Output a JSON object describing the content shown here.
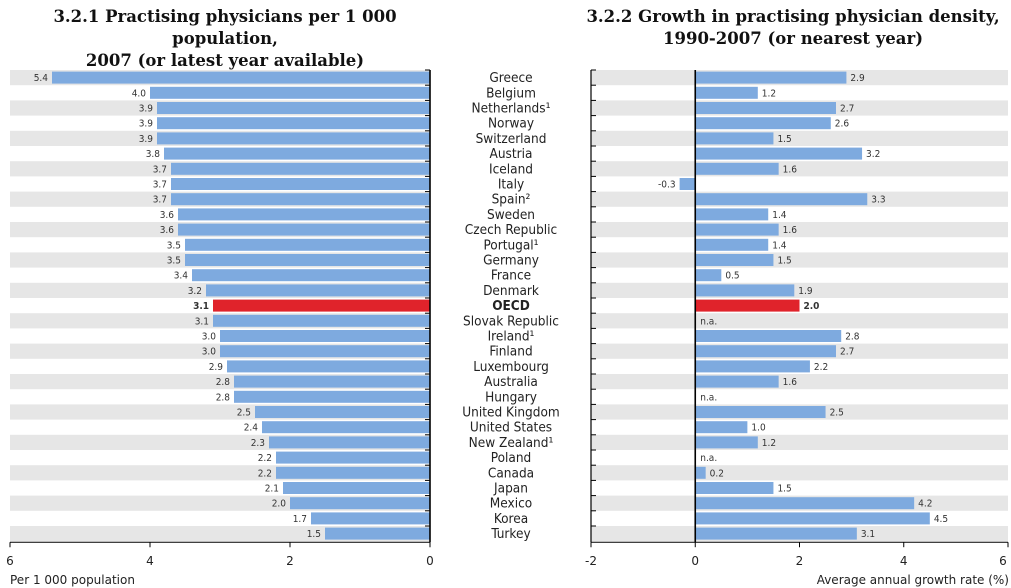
{
  "left_title": [
    "3.2.1  Practising physicians per 1 000 population,",
    "2007 (or latest year available)"
  ],
  "right_title": [
    "3.2.2  Growth in practising physician density,",
    "1990-2007 (or nearest year)"
  ],
  "colors": {
    "bar": "#7eaadf",
    "highlight": "#e0232b",
    "axis": "#000000",
    "band": "#e6e6e6"
  },
  "chart_data": [
    {
      "type": "bar",
      "orientation": "horizontal",
      "title": "3.2.1 Practising physicians per 1 000 population, 2007 (or latest year available)",
      "xlabel": "Per 1 000 population",
      "xlim": [
        6,
        0
      ],
      "ticks": [
        "6",
        "4",
        "2",
        "0"
      ],
      "highlight": "OECD",
      "categories": [
        "Greece",
        "Belgium",
        "Netherlands",
        "Norway",
        "Switzerland",
        "Austria",
        "Iceland",
        "Italy",
        "Spain",
        "Sweden",
        "Czech Republic",
        "Portugal",
        "Germany",
        "France",
        "Denmark",
        "OECD",
        "Slovak Republic",
        "Ireland",
        "Finland",
        "Luxembourg",
        "Australia",
        "Hungary",
        "United Kingdom",
        "United States",
        "New Zealand",
        "Poland",
        "Canada",
        "Japan",
        "Mexico",
        "Korea",
        "Turkey"
      ],
      "values": [
        5.4,
        4.0,
        3.9,
        3.9,
        3.9,
        3.8,
        3.7,
        3.7,
        3.7,
        3.6,
        3.6,
        3.5,
        3.5,
        3.4,
        3.2,
        3.1,
        3.1,
        3.0,
        3.0,
        2.9,
        2.8,
        2.8,
        2.5,
        2.4,
        2.3,
        2.2,
        2.2,
        2.1,
        2.0,
        1.7,
        1.5
      ],
      "value_labels": [
        "5.4",
        "4.0",
        "3.9",
        "3.9",
        "3.9",
        "3.8",
        "3.7",
        "3.7",
        "3.7",
        "3.6",
        "3.6",
        "3.5",
        "3.5",
        "3.4",
        "3.2",
        "3.1",
        "3.1",
        "3.0",
        "3.0",
        "2.9",
        "2.8",
        "2.8",
        "2.5",
        "2.4",
        "2.3",
        "2.2",
        "2.2",
        "2.1",
        "2.0",
        "1.7",
        "1.5"
      ]
    },
    {
      "type": "bar",
      "orientation": "horizontal",
      "title": "3.2.2 Growth in practising physician density, 1990-2007 (or nearest year)",
      "xlabel": "Average annual growth rate (%)",
      "xlim": [
        -2,
        6
      ],
      "ticks": [
        "-2",
        "0",
        "2",
        "4",
        "6"
      ],
      "highlight": "OECD",
      "categories": [
        "Greece",
        "Belgium",
        "Netherlands",
        "Norway",
        "Switzerland",
        "Austria",
        "Iceland",
        "Italy",
        "Spain",
        "Sweden",
        "Czech Republic",
        "Portugal",
        "Germany",
        "France",
        "Denmark",
        "OECD",
        "Slovak Republic",
        "Ireland",
        "Finland",
        "Luxembourg",
        "Australia",
        "Hungary",
        "United Kingdom",
        "United States",
        "New Zealand",
        "Poland",
        "Canada",
        "Japan",
        "Mexico",
        "Korea",
        "Turkey"
      ],
      "values": [
        2.9,
        1.2,
        2.7,
        2.6,
        1.5,
        3.2,
        1.6,
        -0.3,
        3.3,
        1.4,
        1.6,
        1.4,
        1.5,
        0.5,
        1.9,
        2.0,
        null,
        2.8,
        2.7,
        2.2,
        1.6,
        null,
        2.5,
        1.0,
        1.2,
        null,
        0.2,
        1.5,
        4.2,
        4.5,
        3.1
      ],
      "value_labels": [
        "2.9",
        "1.2",
        "2.7",
        "2.6",
        "1.5",
        "3.2",
        "1.6",
        "-0.3",
        "3.3",
        "1.4",
        "1.6",
        "1.4",
        "1.5",
        "0.5",
        "1.9",
        "2.0",
        "n.a.",
        "2.8",
        "2.7",
        "2.2",
        "1.6",
        "n.a.",
        "2.5",
        "1.0",
        "1.2",
        "n.a.",
        "0.2",
        "1.5",
        "4.2",
        "4.5",
        "3.1"
      ]
    }
  ],
  "country_labels": [
    "Greece",
    "Belgium",
    "Netherlands¹",
    "Norway",
    "Switzerland",
    "Austria",
    "Iceland",
    "Italy",
    "Spain²",
    "Sweden",
    "Czech Republic",
    "Portugal¹",
    "Germany",
    "France",
    "Denmark",
    "OECD",
    "Slovak Republic",
    "Ireland¹",
    "Finland",
    "Luxembourg",
    "Australia",
    "Hungary",
    "United Kingdom",
    "United States",
    "New Zealand¹",
    "Poland",
    "Canada",
    "Japan",
    "Mexico",
    "Korea",
    "Turkey"
  ]
}
